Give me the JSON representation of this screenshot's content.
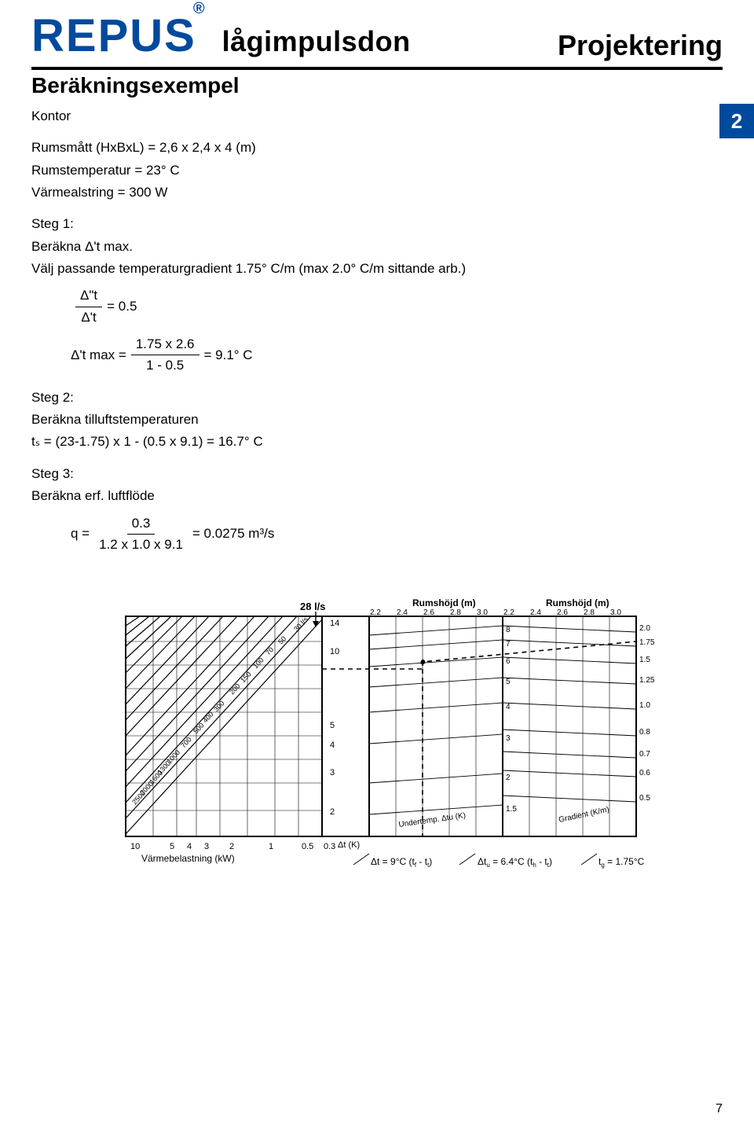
{
  "brand": {
    "name": "REPUS",
    "reg": "®",
    "sub": "lågimpulsdon"
  },
  "header": {
    "section_right": "Projektering",
    "section_title": "Beräkningsexempel"
  },
  "page_tab": "2",
  "bottom_page": "7",
  "intro": {
    "line1": "Kontor",
    "line2": "Rumsmått   (HxBxL) = 2,6 x 2,4 x 4 (m)",
    "line3": "Rumstemperatur = 23° C",
    "line4": "Värmealstring = 300 W"
  },
  "step1": {
    "title": "Steg 1:",
    "line1": "Beräkna Δ't max.",
    "line2": "Välj passande temperaturgradient  1.75° C/m (max 2.0° C/m sittande arb.)",
    "frac1_num": "Δ\"t",
    "frac1_den": "Δ't",
    "frac1_eq": "= 0.5",
    "eq2_left": "Δ't max =",
    "eq2_num": "1.75 x 2.6",
    "eq2_den": "1 - 0.5",
    "eq2_right": "= 9.1° C"
  },
  "step2": {
    "title": "Steg 2:",
    "line1": "Beräkna tilluftstemperaturen",
    "eq": "tₛ = (23-1.75) x 1 - (0.5 x 9.1) = 16.7° C"
  },
  "step3": {
    "title": "Steg 3:",
    "line1": "Beräkna erf. luftflöde",
    "eq_left": "q =",
    "eq_num": "0.3",
    "eq_den": "1.2 x 1.0 x 9.1",
    "eq_right": "= 0.0275 m³/s"
  },
  "chart": {
    "flow_label": "28 l/s",
    "rh_label1": "Rumshöjd (m)",
    "rh_label2": "Rumshöjd (m)",
    "rh_ticks": [
      "2.2",
      "2.4",
      "2.6",
      "2.8",
      "3.0"
    ],
    "left_y": [
      "14",
      "10",
      "5",
      "4",
      "3",
      "2"
    ],
    "mid_y": [
      "8",
      "7",
      "6",
      "5",
      "4",
      "3",
      "2",
      "1.5"
    ],
    "right_y": [
      "2.0",
      "1.75",
      "1.5",
      "1.25",
      "1.0",
      "0.8",
      "0.7",
      "0.6",
      "0.5"
    ],
    "diag_labels": [
      "30 l/s",
      "50",
      "70",
      "100",
      "150",
      "200",
      "300",
      "400",
      "500",
      "700",
      "1000",
      "1300",
      "1600",
      "2000",
      "2500"
    ],
    "x_axis_label": "Värmebelastning (kW)",
    "x_ticks": [
      "10",
      "5",
      "4",
      "3",
      "2",
      "1",
      "0.5",
      "0.3"
    ],
    "dt_label": "Δt (K)",
    "undertemp_label": "Undertemp. Δtu (K)",
    "gradient_label": "Gradient (K/m)",
    "callout1_pre": "Δt = 9°C (t",
    "callout1_sub1": "f",
    "callout1_mid": " - t",
    "callout1_sub2": "t",
    "callout1_post": ")",
    "callout2_pre": "Δt",
    "callout2_sub0": "u",
    "callout2_mid1": " = 6.4°C (t",
    "callout2_sub1": "h",
    "callout2_mid2": " - t",
    "callout2_sub2": "t",
    "callout2_post": ")",
    "callout3_pre": "t",
    "callout3_sub": "g",
    "callout3_post": " = 1.75°C",
    "colors": {
      "grid": "#000000",
      "dash": "#000000",
      "bg": "#ffffff"
    }
  }
}
